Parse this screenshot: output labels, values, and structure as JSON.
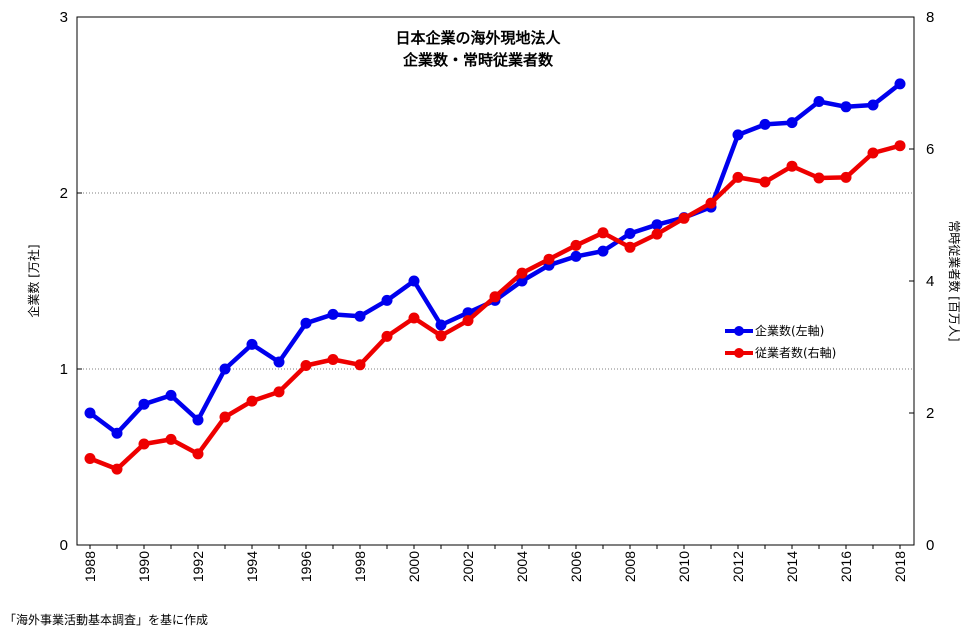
{
  "chart_data": {
    "type": "line",
    "title_lines": [
      "日本企業の海外現地法人",
      "企業数・常時従業者数"
    ],
    "ylabel_left": "企業数 [万社]",
    "ylabel_right": "常時従業者数 [百万人]",
    "ylim_left": [
      0,
      3
    ],
    "ylim_right": [
      0,
      8
    ],
    "yticks_left": [
      0,
      1,
      2,
      3
    ],
    "yticks_right": [
      0,
      2,
      4,
      6,
      8
    ],
    "grid": "horizontal dotted at left-axis 1 and 2",
    "legend_position": "right-middle",
    "x": [
      1988,
      1989,
      1990,
      1991,
      1992,
      1993,
      1994,
      1995,
      1996,
      1997,
      1998,
      1999,
      2000,
      2001,
      2002,
      2003,
      2004,
      2005,
      2006,
      2007,
      2008,
      2009,
      2010,
      2011,
      2012,
      2013,
      2014,
      2015,
      2016,
      2017,
      2018
    ],
    "xticks": [
      1988,
      1990,
      1992,
      1994,
      1996,
      1998,
      2000,
      2002,
      2004,
      2006,
      2008,
      2010,
      2012,
      2014,
      2016,
      2018
    ],
    "series": [
      {
        "name": "企業数(左軸)",
        "axis": "left",
        "color": "#0000ee",
        "values": [
          0.75,
          0.635,
          0.8,
          0.85,
          0.71,
          1.0,
          1.14,
          1.04,
          1.26,
          1.31,
          1.3,
          1.39,
          1.5,
          1.25,
          1.32,
          1.39,
          1.5,
          1.59,
          1.64,
          1.67,
          1.77,
          1.82,
          1.86,
          1.92,
          2.33,
          2.39,
          2.4,
          2.52,
          2.49,
          2.5,
          2.62
        ]
      },
      {
        "name": "従業者数(右軸)",
        "axis": "right",
        "color": "#ee0000",
        "values": [
          1.31,
          1.15,
          1.53,
          1.6,
          1.38,
          1.94,
          2.18,
          2.32,
          2.72,
          2.81,
          2.73,
          3.16,
          3.44,
          3.17,
          3.4,
          3.76,
          4.12,
          4.33,
          4.54,
          4.73,
          4.51,
          4.71,
          4.95,
          5.18,
          5.57,
          5.5,
          5.74,
          5.56,
          5.57,
          5.94,
          6.05
        ]
      }
    ]
  },
  "source_note": "「海外事業活動基本調査」を基に作成"
}
